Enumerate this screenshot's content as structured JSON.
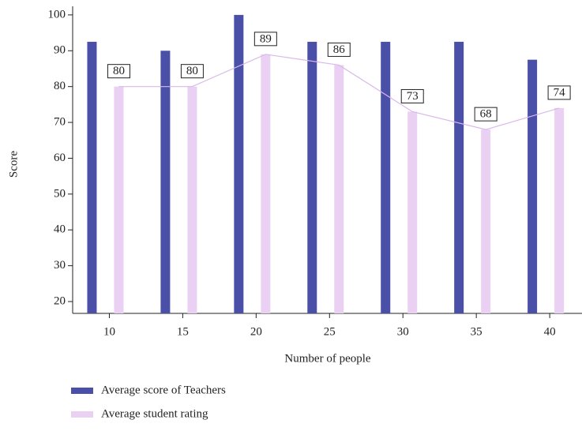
{
  "chart_data": {
    "type": "bar",
    "x_label": "Number of people",
    "y_label": "Score",
    "x": [
      10,
      15,
      20,
      25,
      30,
      35,
      40
    ],
    "series": [
      {
        "name": "Average score of Teachers",
        "color": "#4a4fa8",
        "values": [
          92.5,
          90,
          100,
          92.5,
          92.5,
          92.5,
          87.5
        ]
      },
      {
        "name": "Average student rating",
        "color": "#ead0f2",
        "line_color": "#d9b9ea",
        "values": [
          80,
          80,
          89,
          86,
          73,
          68,
          74
        ]
      }
    ],
    "xlim": [
      7.5,
      42.2
    ],
    "xticks": [
      10,
      15,
      20,
      25,
      30,
      35,
      40
    ],
    "ylim": [
      16.7,
      102.4
    ],
    "yticks": [
      20,
      30,
      40,
      50,
      60,
      70,
      80,
      90,
      100
    ],
    "grid": false
  }
}
